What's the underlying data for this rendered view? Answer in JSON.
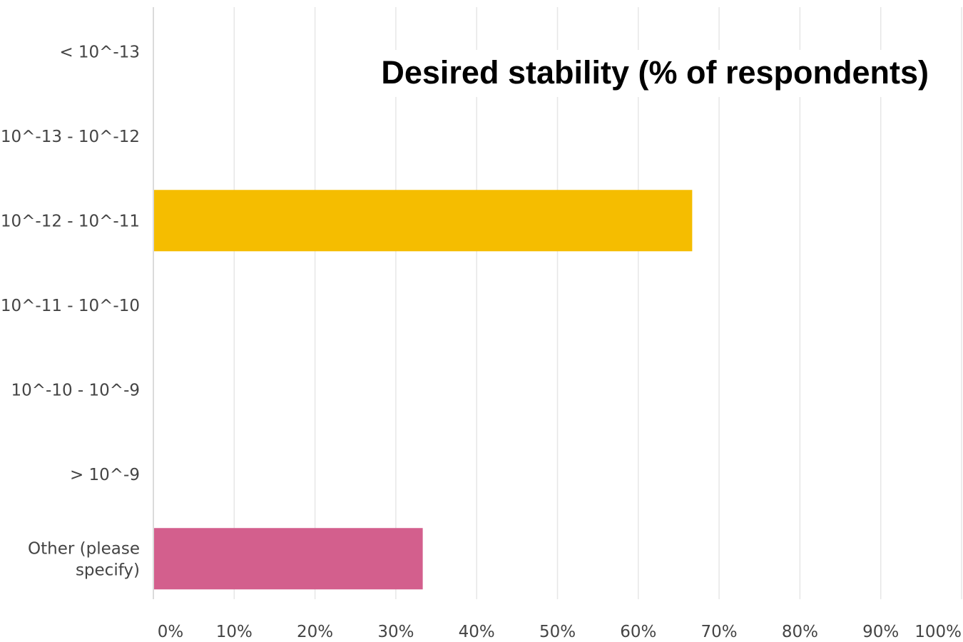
{
  "chart_data": {
    "type": "bar",
    "orientation": "horizontal",
    "title": "Desired stability (% of respondents)",
    "categories": [
      "< 10^-13",
      "10^-13 - 10^-12",
      "10^-12 - 10^-11",
      "10^-11 - 10^-10",
      "10^-10 - 10^-9",
      "> 10^-9",
      "Other (please specify)"
    ],
    "values": [
      0,
      0,
      66.67,
      0,
      0,
      0,
      33.33
    ],
    "bar_colors": [
      "#f5bd00",
      "#f5bd00",
      "#f5bd00",
      "#f5bd00",
      "#f5bd00",
      "#f5bd00",
      "#d35f8d"
    ],
    "xlim": [
      0,
      100
    ],
    "x_ticks": [
      "0%",
      "10%",
      "20%",
      "30%",
      "40%",
      "50%",
      "60%",
      "70%",
      "80%",
      "90%",
      "100%"
    ],
    "grid": true,
    "legend": "none",
    "xlabel": "",
    "ylabel": ""
  }
}
